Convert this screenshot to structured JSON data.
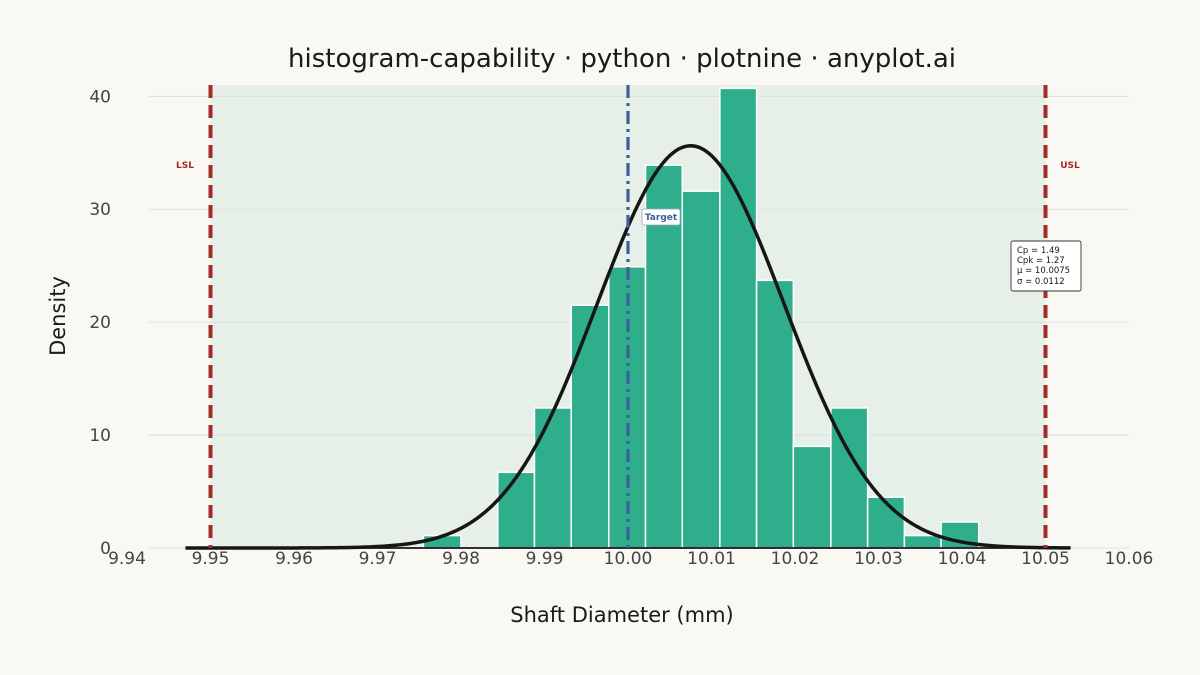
{
  "chart_data": {
    "type": "bar",
    "title": "histogram-capability · python · plotnine · anyplot.ai",
    "xlabel": "Shaft Diameter (mm)",
    "ylabel": "Density",
    "xlim": [
      9.94,
      10.06
    ],
    "ylim": [
      0,
      41
    ],
    "x_ticks": [
      "9.94",
      "9.95",
      "9.96",
      "9.97",
      "9.98",
      "9.99",
      "10.00",
      "10.01",
      "10.02",
      "10.03",
      "10.04",
      "10.05",
      "10.06"
    ],
    "y_ticks": [
      "0",
      "10",
      "20",
      "30",
      "40"
    ],
    "bins": [
      {
        "x0": 9.9755,
        "x1": 9.98,
        "value": 1.1
      },
      {
        "x0": 9.98,
        "x1": 9.9844,
        "value": 0
      },
      {
        "x0": 9.9844,
        "x1": 9.9888,
        "value": 6.7
      },
      {
        "x0": 9.9888,
        "x1": 9.9932,
        "value": 12.4
      },
      {
        "x0": 9.9932,
        "x1": 9.9977,
        "value": 21.5
      },
      {
        "x0": 9.9977,
        "x1": 10.0021,
        "value": 24.9
      },
      {
        "x0": 10.0021,
        "x1": 10.0065,
        "value": 33.9
      },
      {
        "x0": 10.0065,
        "x1": 10.011,
        "value": 31.6
      },
      {
        "x0": 10.011,
        "x1": 10.0154,
        "value": 40.7
      },
      {
        "x0": 10.0154,
        "x1": 10.0198,
        "value": 23.7
      },
      {
        "x0": 10.0198,
        "x1": 10.0243,
        "value": 9.0
      },
      {
        "x0": 10.0243,
        "x1": 10.0287,
        "value": 12.4
      },
      {
        "x0": 10.0287,
        "x1": 10.0331,
        "value": 4.5
      },
      {
        "x0": 10.0331,
        "x1": 10.0375,
        "value": 1.1
      },
      {
        "x0": 10.0375,
        "x1": 10.042,
        "value": 2.3
      }
    ],
    "normal_curve": {
      "mean": 10.0075,
      "sd": 0.0112,
      "x_range": [
        9.947,
        10.053
      ]
    },
    "lsl": {
      "value": 9.95,
      "label": "LSL"
    },
    "usl": {
      "value": 10.05,
      "label": "USL"
    },
    "target": {
      "value": 10.0,
      "label": "Target"
    },
    "stats": {
      "cp": "Cp  = 1.49",
      "cpk": "Cpk = 1.27",
      "mu": "μ   = 10.0075",
      "sigma": "σ   = 0.0112"
    },
    "grid": true,
    "legend": "none",
    "colors": {
      "background": "#faf8f2",
      "spec_zone": "#e6f0e8",
      "bar_fill": "#2eae8a",
      "bar_edge": "#ffffff",
      "curve": "#161616",
      "spec_lines": "#a52a2a",
      "target_line": "#3b5f99",
      "gridline": "#d9dcd8"
    }
  }
}
